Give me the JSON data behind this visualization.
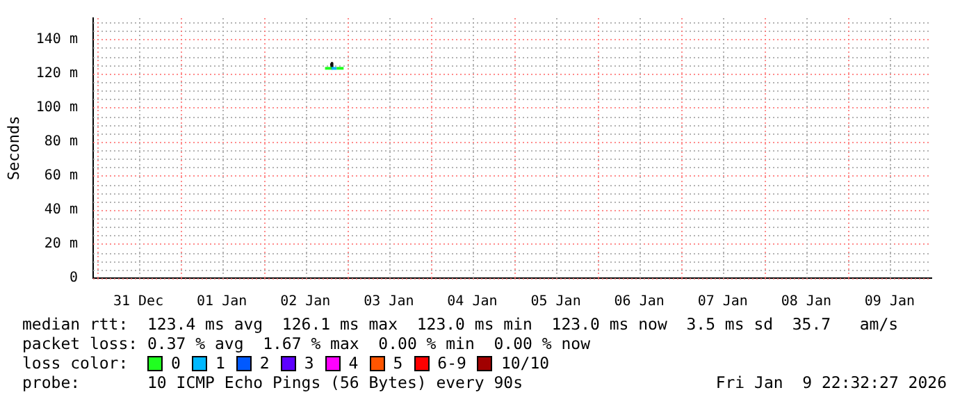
{
  "chart_data": {
    "type": "line",
    "ylabel": "Seconds",
    "legend_title": "loss color:",
    "legend": "bottom",
    "grid": true,
    "marker": "none",
    "line_style": "solid",
    "xlim": [
      "2025-12-30T23:00",
      "2026-01-10T00:00"
    ],
    "xticks": [
      {
        "value": "2025-12-31T00:00",
        "label": null
      },
      {
        "value": "2025-12-31T12:00",
        "label": "31 Dec"
      },
      {
        "value": "2026-01-01T00:00",
        "label": null
      },
      {
        "value": "2026-01-01T12:00",
        "label": "01 Jan"
      },
      {
        "value": "2026-01-02T00:00",
        "label": null
      },
      {
        "value": "2026-01-02T12:00",
        "label": "02 Jan"
      },
      {
        "value": "2026-01-03T00:00",
        "label": null
      },
      {
        "value": "2026-01-03T12:00",
        "label": "03 Jan"
      },
      {
        "value": "2026-01-04T00:00",
        "label": null
      },
      {
        "value": "2026-01-04T12:00",
        "label": "04 Jan"
      },
      {
        "value": "2026-01-05T00:00",
        "label": null
      },
      {
        "value": "2026-01-05T12:00",
        "label": "05 Jan"
      },
      {
        "value": "2026-01-06T00:00",
        "label": null
      },
      {
        "value": "2026-01-06T12:00",
        "label": "06 Jan"
      },
      {
        "value": "2026-01-07T00:00",
        "label": null
      },
      {
        "value": "2026-01-07T12:00",
        "label": "07 Jan"
      },
      {
        "value": "2026-01-08T00:00",
        "label": null
      },
      {
        "value": "2026-01-08T12:00",
        "label": "08 Jan"
      },
      {
        "value": "2026-01-09T00:00",
        "label": null
      },
      {
        "value": "2026-01-09T12:00",
        "label": "09 Jan"
      }
    ],
    "ylim": [
      0,
      152.5
    ],
    "yticks": [
      {
        "value": 0,
        "label": "0"
      },
      {
        "value": 5,
        "label": null
      },
      {
        "value": 10,
        "label": null
      },
      {
        "value": 15,
        "label": null
      },
      {
        "value": 20,
        "label": "20 m"
      },
      {
        "value": 25,
        "label": null
      },
      {
        "value": 30,
        "label": null
      },
      {
        "value": 35,
        "label": null
      },
      {
        "value": 40,
        "label": "40 m"
      },
      {
        "value": 45,
        "label": null
      },
      {
        "value": 50,
        "label": null
      },
      {
        "value": 55,
        "label": null
      },
      {
        "value": 60,
        "label": "60 m"
      },
      {
        "value": 65,
        "label": null
      },
      {
        "value": 70,
        "label": null
      },
      {
        "value": 75,
        "label": null
      },
      {
        "value": 80,
        "label": "80 m"
      },
      {
        "value": 85,
        "label": null
      },
      {
        "value": 90,
        "label": null
      },
      {
        "value": 95,
        "label": null
      },
      {
        "value": 100,
        "label": "100 m"
      },
      {
        "value": 105,
        "label": null
      },
      {
        "value": 110,
        "label": null
      },
      {
        "value": 115,
        "label": null
      },
      {
        "value": 120,
        "label": "120 m"
      },
      {
        "value": 125,
        "label": null
      },
      {
        "value": 130,
        "label": null
      },
      {
        "value": 135,
        "label": null
      },
      {
        "value": 140,
        "label": "140 m"
      },
      {
        "value": 145,
        "label": null
      },
      {
        "value": 150,
        "label": null
      }
    ],
    "series": [
      {
        "name": "0",
        "color": "#20ff20",
        "x": [
          "2026-01-02T17:40",
          "2026-01-02T19:30",
          "2026-01-02T20:15",
          "2026-01-02T21:00",
          "2026-01-02T23:00"
        ],
        "values": [
          123,
          123,
          null,
          123,
          123
        ]
      },
      {
        "name": "1",
        "color": "#00b8ff",
        "x": [
          "2026-01-02T19:30",
          "2026-01-02T21:00"
        ],
        "values": [
          123,
          123
        ]
      },
      {
        "name": "2",
        "color": "#0059ff"
      },
      {
        "name": "3",
        "color": "#5e00ff"
      },
      {
        "name": "4",
        "color": "#ff00ff"
      },
      {
        "name": "5",
        "color": "#ff5500"
      },
      {
        "name": "6-9",
        "color": "#ff0000"
      },
      {
        "name": "10/10",
        "color": "#a10000"
      },
      {
        "color": "#101010",
        "x": [
          "2026-01-02T19:30",
          "2026-01-02T19:40"
        ],
        "values": [
          126,
          123
        ]
      }
    ],
    "annotations": [
      "median rtt:  123.4 ms avg  126.1 ms max  123.0 ms min  123.0 ms now  3.5 ms sd  35.7   am/s",
      "packet loss: 0.37 % avg  1.67 % max  0.00 % min  0.00 % now",
      "probe:       10 ICMP Echo Pings (56 Bytes) every 90s",
      "Fri Jan  9 22:32:27 2026"
    ]
  }
}
